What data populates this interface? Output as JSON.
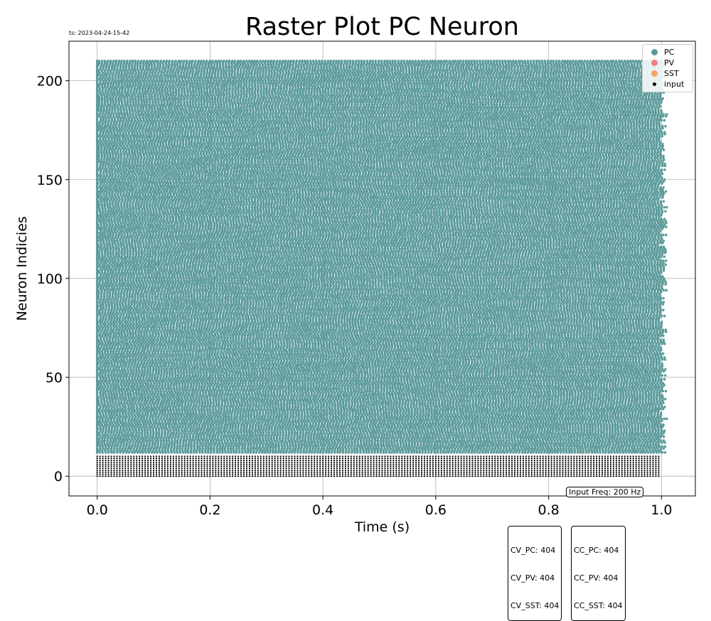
{
  "timestamp": "ts: 2023-04-24-15-42",
  "chart_data": {
    "type": "scatter",
    "title": "Raster Plot PC Neuron",
    "xlabel": "Time (s)",
    "ylabel": "Neuron Indicies",
    "xlim": [
      -0.05,
      1.06
    ],
    "ylim": [
      -10,
      220
    ],
    "xticks": [
      0.0,
      0.2,
      0.4,
      0.6,
      0.8,
      1.0
    ],
    "xtick_labels": [
      "0.0",
      "0.2",
      "0.4",
      "0.6",
      "0.8",
      "1.0"
    ],
    "yticks": [
      0,
      50,
      100,
      150,
      200
    ],
    "ytick_labels": [
      "0",
      "50",
      "100",
      "150",
      "200"
    ],
    "grid": true,
    "legend_position": "top-right",
    "series": [
      {
        "name": "PC",
        "color": "#5b9a9a",
        "neuron_range": [
          12,
          210
        ],
        "time_range": [
          0.0,
          1.01
        ],
        "approx_rate_hz": 200
      },
      {
        "name": "PV",
        "color": "#f08080",
        "neuron_range": null,
        "time_range": null
      },
      {
        "name": "SST",
        "color": "#f4a460",
        "neuron_range": null,
        "time_range": null
      },
      {
        "name": "input",
        "color": "#000000",
        "neuron_range": [
          0,
          10
        ],
        "time_range": [
          0.0,
          1.0
        ],
        "approx_rate_hz": 200
      }
    ]
  },
  "annotations": {
    "input_freq": "Input Freq: 200 Hz",
    "cv_box": [
      "CV_PC: 404",
      "CV_PV: 404",
      "CV_SST: 404"
    ],
    "cc_box": [
      "CC_PC: 404",
      "CC_PV: 404",
      "CC_SST: 404"
    ]
  }
}
